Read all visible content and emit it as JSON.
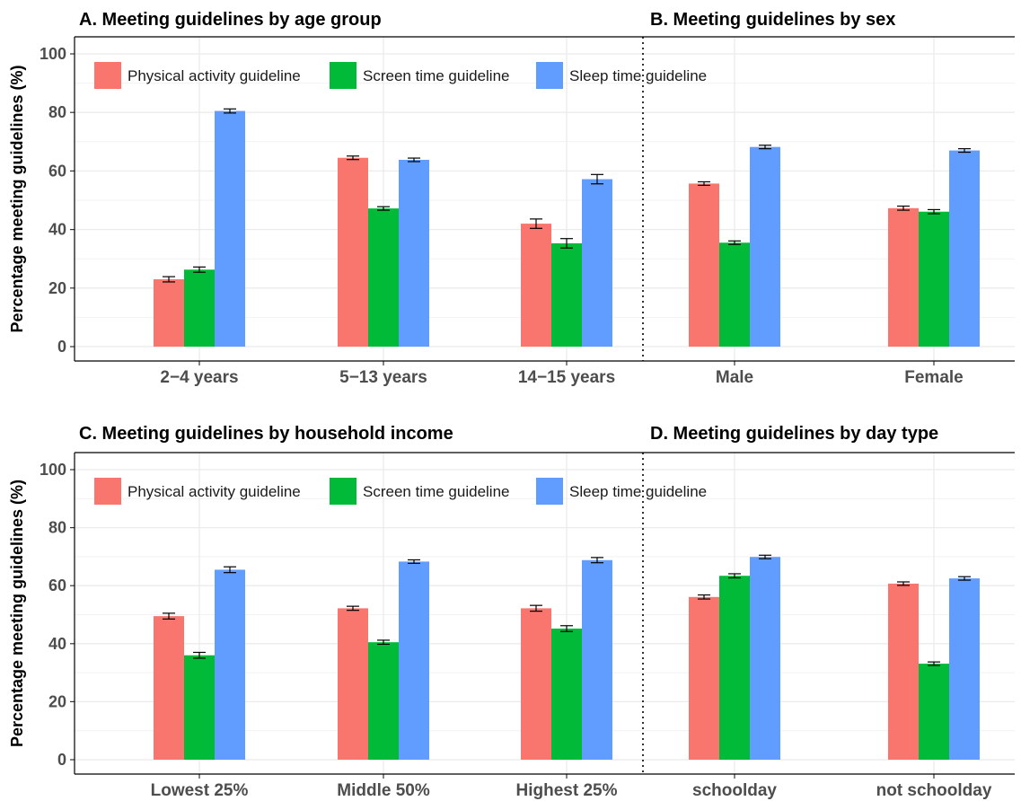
{
  "figure": {
    "ylabel": "Percentage meeting guidelines (%)",
    "y_ticks": [
      0,
      20,
      40,
      60,
      80,
      100
    ],
    "colors": {
      "Physical activity guideline": "#F8766D",
      "Screen time guideline": "#00BA38",
      "Sleep time guideline": "#619CFF"
    },
    "legend": [
      "Physical activity guideline",
      "Screen time guideline",
      "Sleep time guideline"
    ]
  },
  "chart_data": [
    {
      "type": "bar",
      "title": "A. Meeting guidelines by age group",
      "categories": [
        "2−4 years",
        "5−13 years",
        "14−15 years"
      ],
      "ylim": [
        0,
        100
      ],
      "series": [
        {
          "name": "Physical activity guideline",
          "values": [
            23,
            64.5,
            42
          ],
          "err": [
            0.9,
            0.6,
            1.6
          ]
        },
        {
          "name": "Screen time guideline",
          "values": [
            26.3,
            47.2,
            35.3
          ],
          "err": [
            0.9,
            0.6,
            1.6
          ]
        },
        {
          "name": "Sleep time guideline",
          "values": [
            80.5,
            63.8,
            57.2
          ],
          "err": [
            0.7,
            0.6,
            1.6
          ]
        }
      ]
    },
    {
      "type": "bar",
      "title": "B. Meeting guidelines by sex",
      "categories": [
        "Male",
        "Female"
      ],
      "ylim": [
        0,
        100
      ],
      "series": [
        {
          "name": "Physical activity guideline",
          "values": [
            55.7,
            47.3
          ],
          "err": [
            0.6,
            0.7
          ]
        },
        {
          "name": "Screen time guideline",
          "values": [
            35.5,
            46.1
          ],
          "err": [
            0.6,
            0.7
          ]
        },
        {
          "name": "Sleep time guideline",
          "values": [
            68.2,
            67
          ],
          "err": [
            0.6,
            0.6
          ]
        }
      ]
    },
    {
      "type": "bar",
      "title": "C. Meeting guidelines by household income",
      "categories": [
        "Lowest 25%",
        "Middle 50%",
        "Highest 25%"
      ],
      "ylim": [
        0,
        100
      ],
      "series": [
        {
          "name": "Physical activity guideline",
          "values": [
            49.5,
            52.2,
            52.2
          ],
          "err": [
            1,
            0.7,
            1
          ]
        },
        {
          "name": "Screen time guideline",
          "values": [
            36,
            40.5,
            45.2
          ],
          "err": [
            1,
            0.7,
            1
          ]
        },
        {
          "name": "Sleep time guideline",
          "values": [
            65.5,
            68.3,
            68.8
          ],
          "err": [
            1,
            0.6,
            0.9
          ]
        }
      ]
    },
    {
      "type": "bar",
      "title": "D. Meeting guidelines by day type",
      "categories": [
        "schoolday",
        "not schoolday"
      ],
      "ylim": [
        0,
        100
      ],
      "series": [
        {
          "name": "Physical activity guideline",
          "values": [
            56.1,
            60.7
          ],
          "err": [
            0.7,
            0.6
          ]
        },
        {
          "name": "Screen time guideline",
          "values": [
            63.4,
            33.1
          ],
          "err": [
            0.7,
            0.6
          ]
        },
        {
          "name": "Sleep time guideline",
          "values": [
            69.9,
            62.5
          ],
          "err": [
            0.6,
            0.6
          ]
        }
      ]
    }
  ]
}
